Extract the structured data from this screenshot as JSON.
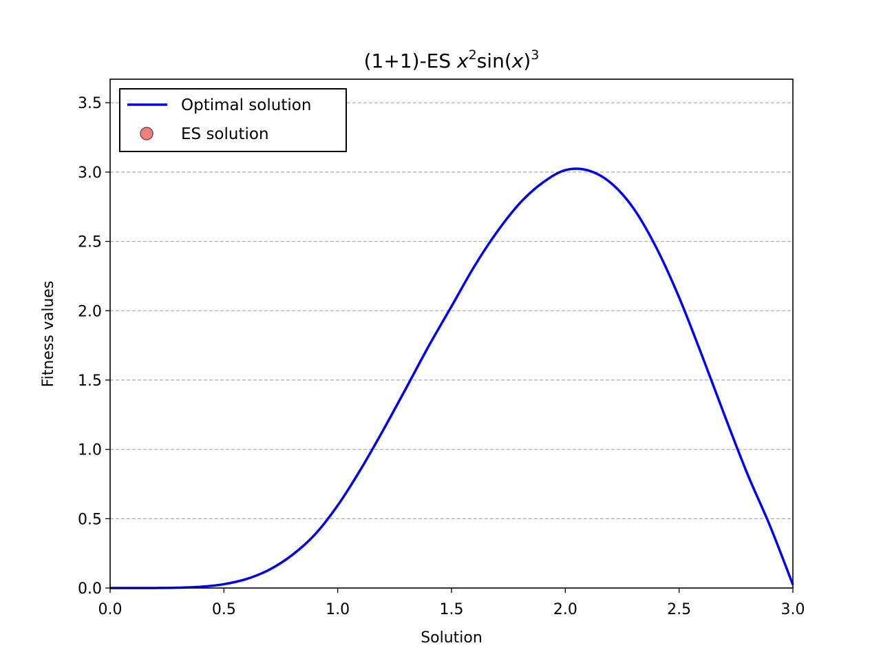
{
  "chart_data": {
    "type": "line",
    "title": "(1+1)-ES x²sin(x)³",
    "title_parts": {
      "prefix": "(1+1)-ES ",
      "var1": "x",
      "exp1": "2",
      "mid": "sin(",
      "var2": "x",
      "close": ")",
      "exp2": "3"
    },
    "xlabel": "Solution",
    "ylabel": "Fitness values",
    "xlim": [
      0.0,
      3.0
    ],
    "ylim": [
      0.0,
      3.67
    ],
    "xticks": [
      "0.0",
      "0.5",
      "1.0",
      "1.5",
      "2.0",
      "2.5",
      "3.0"
    ],
    "yticks": [
      "0.0",
      "0.5",
      "1.0",
      "1.5",
      "2.0",
      "2.5",
      "3.0",
      "3.5"
    ],
    "grid": "horizontal dashed",
    "legend_position": "upper-left",
    "series": [
      {
        "name": "Optimal solution",
        "style": "line",
        "color": "#0000ff",
        "x": [
          0.0,
          0.1,
          0.2,
          0.3,
          0.4,
          0.5,
          0.6,
          0.7,
          0.8,
          0.9,
          1.0,
          1.1,
          1.2,
          1.3,
          1.4,
          1.5,
          1.6,
          1.7,
          1.8,
          1.9,
          2.0,
          2.1,
          2.2,
          2.3,
          2.4,
          2.5,
          2.6,
          2.7,
          2.8,
          2.9,
          3.0
        ],
        "y": [
          0.0,
          1e-05,
          0.0003,
          0.0023,
          0.0093,
          0.0276,
          0.0654,
          0.1327,
          0.2381,
          0.3863,
          0.5958,
          0.8533,
          1.1395,
          1.4403,
          1.7458,
          2.0316,
          2.3192,
          2.5686,
          2.7753,
          2.9228,
          3.014,
          3.0126,
          2.9221,
          2.7378,
          2.4546,
          2.0962,
          1.6793,
          1.2446,
          0.8233,
          0.4458,
          0.0235
        ]
      },
      {
        "name": "ES solution",
        "style": "marker",
        "color": "#f08080",
        "edge_color": "#7a4a4a",
        "x": [],
        "y": []
      }
    ]
  }
}
